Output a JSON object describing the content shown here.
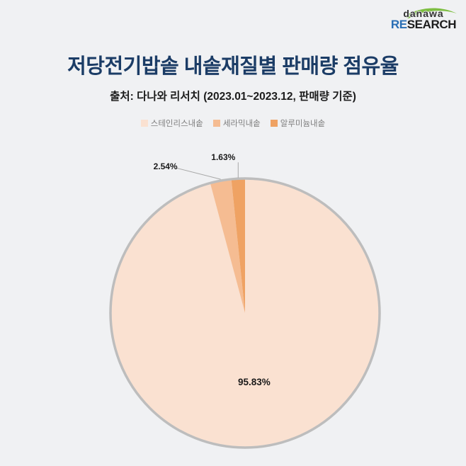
{
  "page": {
    "background": "#f0f1f3"
  },
  "logo": {
    "brand": "danawa",
    "research_highlight": "RE",
    "research_rest": "SEARCH",
    "swoosh_color": "#7ebe42",
    "highlight_color": "#2a6fb5"
  },
  "header": {
    "title": "저당전기밥솥 내솥재질별 판매량 점유율",
    "subtitle": "출처: 다나와 리서치 (2023.01~2023.12, 판매량 기준)"
  },
  "chart_data": {
    "type": "pie",
    "title": "저당전기밥솥 내솥재질별 판매량 점유율",
    "source": "출처: 다나와 리서치 (2023.01~2023.12, 판매량 기준)",
    "unit": "%",
    "legend_position": "top",
    "start_angle_deg": 0,
    "direction": "clockwise",
    "categories": [
      "스테인리스내솥",
      "세라믹내솥",
      "알루미늄내솥"
    ],
    "values": [
      95.83,
      2.54,
      1.63
    ],
    "labels": [
      "95.83%",
      "2.54%",
      "1.63%"
    ],
    "colors": [
      "#fae1d1",
      "#f5bc92",
      "#efa263"
    ],
    "border_color": "#bdbdbd",
    "leader_line_color": "#a8a8a8",
    "label_color": "#1a1a1a"
  }
}
